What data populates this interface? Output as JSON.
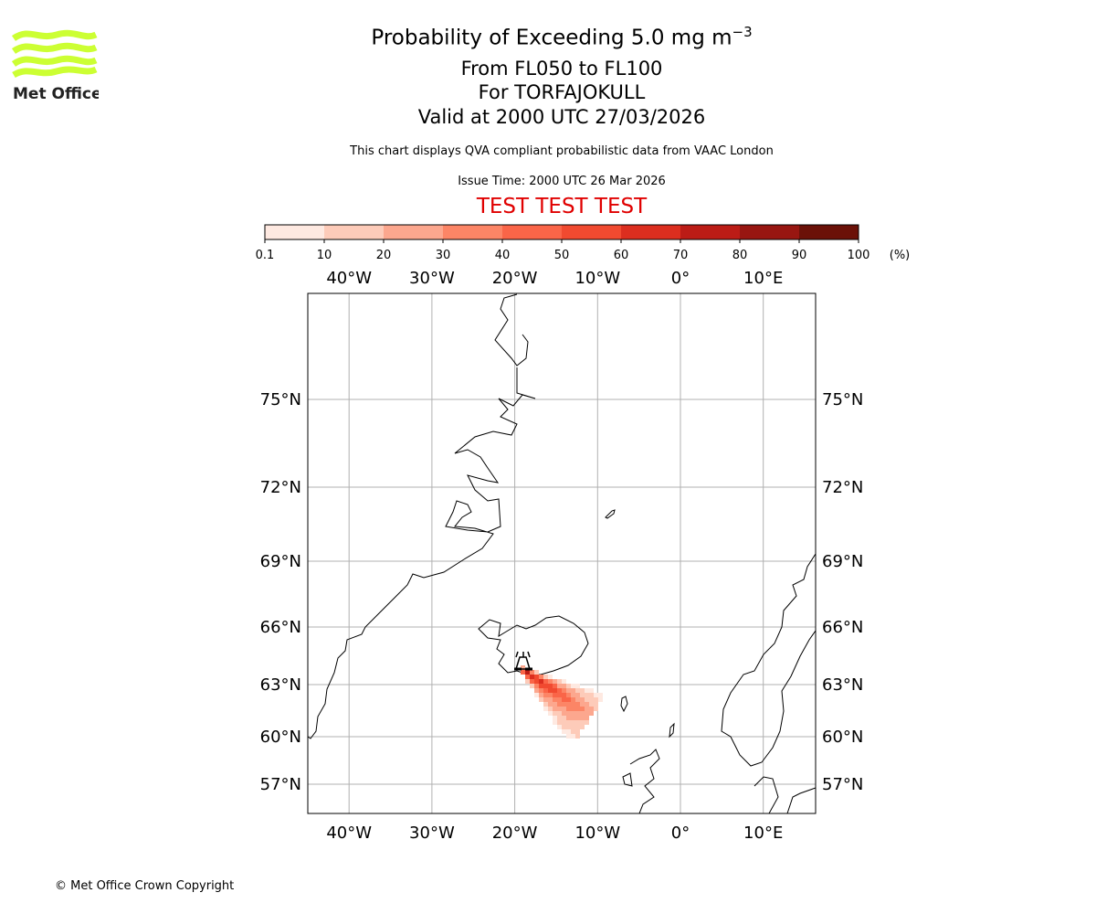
{
  "header": {
    "title": "Probability of Exceeding 5.0 mg m",
    "title_superscript": "−3",
    "levels": "From FL050 to FL100",
    "location": "For TORFAJOKULL",
    "valid": "Valid at 2000 UTC 27/03/2026",
    "disclaimer": "This chart displays QVA compliant probabilistic data from VAAC London",
    "issue_time": "Issue Time: 2000 UTC 26 Mar 2026",
    "test_banner": "TEST TEST TEST",
    "test_color": "#e00000"
  },
  "logo": {
    "text": "Met Office",
    "color": "#ccff33"
  },
  "footer": {
    "copyright": "© Met Office Crown Copyright"
  },
  "chart_data": {
    "type": "heatmap",
    "title": "Probability of Exceeding 5.0 mg m-3",
    "colorbar": {
      "ticks": [
        "0.1",
        "10",
        "20",
        "30",
        "40",
        "50",
        "60",
        "70",
        "80",
        "90",
        "100"
      ],
      "unit": "(%)",
      "colors": [
        "#fee9e1",
        "#fdcbb9",
        "#fca78e",
        "#fc8566",
        "#fa6548",
        "#f14a30",
        "#dc2e1f",
        "#bc1c16",
        "#981611",
        "#6b1108"
      ]
    },
    "lon_ticks": [
      {
        "value": -40,
        "label": "40°W"
      },
      {
        "value": -30,
        "label": "30°W"
      },
      {
        "value": -20,
        "label": "20°W"
      },
      {
        "value": -10,
        "label": "10°W"
      },
      {
        "value": 0,
        "label": "0°"
      },
      {
        "value": 10,
        "label": "10°E"
      }
    ],
    "lat_ticks": [
      {
        "value": 75,
        "label": "75°N"
      },
      {
        "value": 72,
        "label": "72°N"
      },
      {
        "value": 69,
        "label": "69°N"
      },
      {
        "value": 66,
        "label": "66°N"
      },
      {
        "value": 63,
        "label": "63°N"
      },
      {
        "value": 60,
        "label": "60°N"
      },
      {
        "value": 57,
        "label": "57°N"
      }
    ],
    "grid": true,
    "volcano": {
      "name": "TORFAJOKULL",
      "lat": 63.9,
      "lon": -19.1
    },
    "plume": {
      "direction": "south-east",
      "max_probability_percent": 85,
      "extent_lon": [
        -19.5,
        -10.5
      ],
      "extent_lat": [
        60.8,
        63.9
      ]
    }
  }
}
